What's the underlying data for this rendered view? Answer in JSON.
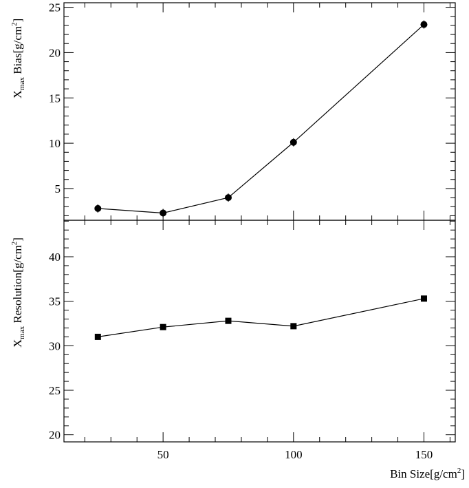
{
  "chart_data": [
    {
      "type": "line",
      "panel": "top",
      "ylabel_main": "X",
      "ylabel_sub": "max",
      "ylabel_rest": " Bias[g/cm",
      "ylabel_sup": "2",
      "ylabel_close": "]",
      "xlim": [
        12,
        162
      ],
      "ylim": [
        1.5,
        25.5
      ],
      "yticks": [
        5,
        10,
        15,
        20,
        25
      ],
      "grid": false,
      "marker": "circle",
      "series": [
        {
          "x": [
            25,
            50,
            75,
            100,
            150
          ],
          "y": [
            2.8,
            2.3,
            4.0,
            10.1,
            23.1
          ],
          "yerr": [
            0.45,
            0.45,
            0.45,
            0.45,
            0.45
          ]
        }
      ]
    },
    {
      "type": "line",
      "panel": "bottom",
      "ylabel_main": "X",
      "ylabel_sub": "max",
      "ylabel_rest": " Resolution[g/cm",
      "ylabel_sup": "2",
      "ylabel_close": "]",
      "xlabel_main": "Bin Size[g/cm",
      "xlabel_sup": "2",
      "xlabel_close": "]",
      "xlim": [
        12,
        162
      ],
      "ylim": [
        19.2,
        44.1
      ],
      "yticks": [
        20,
        25,
        30,
        35,
        40
      ],
      "xticks": [
        50,
        100,
        150
      ],
      "grid": false,
      "marker": "square",
      "series": [
        {
          "x": [
            25,
            50,
            75,
            100,
            150
          ],
          "y": [
            31.0,
            32.1,
            32.8,
            32.2,
            35.3
          ]
        }
      ]
    }
  ],
  "colors": {
    "axis": "#000000",
    "series": "#000000"
  }
}
